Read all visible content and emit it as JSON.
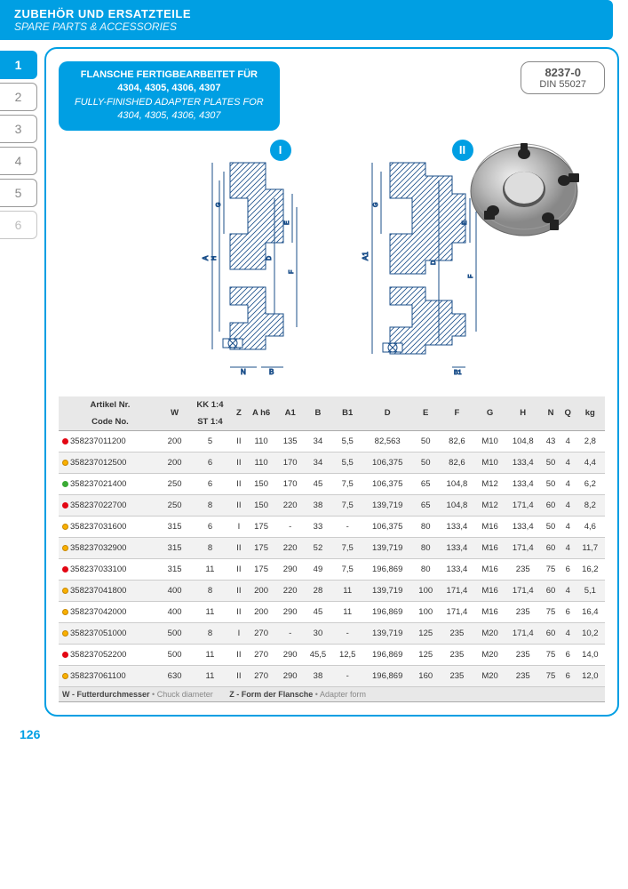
{
  "header": {
    "title_de": "ZUBEHÖR UND ERSATZTEILE",
    "title_en": "SPARE PARTS & ACCESSORIES"
  },
  "tabs": [
    {
      "label": "1",
      "state": "active"
    },
    {
      "label": "2",
      "state": "normal"
    },
    {
      "label": "3",
      "state": "normal"
    },
    {
      "label": "4",
      "state": "normal"
    },
    {
      "label": "5",
      "state": "normal"
    },
    {
      "label": "6",
      "state": "faded"
    }
  ],
  "title_box": {
    "de1": "FLANSCHE FERTIGBEARBEITET FÜR",
    "de2": "4304, 4305, 4306, 4307",
    "en1": "FULLY-FINISHED ADAPTER PLATES FOR",
    "en2": "4304, 4305, 4306, 4307"
  },
  "code_box": {
    "main": "8237-0",
    "sub": "DIN 55027"
  },
  "diagram_badges": {
    "i": "I",
    "ii": "II"
  },
  "table": {
    "headers_de": {
      "article": "Artikel Nr.",
      "kk": "KK 1:4"
    },
    "headers_en": {
      "article": "Code No.",
      "kk": "ST 1:4"
    },
    "cols": [
      "W",
      "",
      "Z",
      "A h6",
      "A1",
      "B",
      "B1",
      "D",
      "E",
      "F",
      "G",
      "H",
      "N",
      "Q",
      "kg"
    ],
    "rows": [
      {
        "dot": "red",
        "code": "358237011200",
        "cells": [
          "200",
          "5",
          "II",
          "110",
          "135",
          "34",
          "5,5",
          "82,563",
          "50",
          "82,6",
          "M10",
          "104,8",
          "43",
          "4",
          "2,8"
        ]
      },
      {
        "dot": "yellow",
        "code": "358237012500",
        "cells": [
          "200",
          "6",
          "II",
          "110",
          "170",
          "34",
          "5,5",
          "106,375",
          "50",
          "82,6",
          "M10",
          "133,4",
          "50",
          "4",
          "4,4"
        ]
      },
      {
        "dot": "green",
        "code": "358237021400",
        "cells": [
          "250",
          "6",
          "II",
          "150",
          "170",
          "45",
          "7,5",
          "106,375",
          "65",
          "104,8",
          "M12",
          "133,4",
          "50",
          "4",
          "6,2"
        ]
      },
      {
        "dot": "red",
        "code": "358237022700",
        "cells": [
          "250",
          "8",
          "II",
          "150",
          "220",
          "38",
          "7,5",
          "139,719",
          "65",
          "104,8",
          "M12",
          "171,4",
          "60",
          "4",
          "8,2"
        ]
      },
      {
        "dot": "yellow",
        "code": "358237031600",
        "cells": [
          "315",
          "6",
          "I",
          "175",
          "-",
          "33",
          "-",
          "106,375",
          "80",
          "133,4",
          "M16",
          "133,4",
          "50",
          "4",
          "4,6"
        ]
      },
      {
        "dot": "yellow",
        "code": "358237032900",
        "cells": [
          "315",
          "8",
          "II",
          "175",
          "220",
          "52",
          "7,5",
          "139,719",
          "80",
          "133,4",
          "M16",
          "171,4",
          "60",
          "4",
          "11,7"
        ]
      },
      {
        "dot": "red",
        "code": "358237033100",
        "cells": [
          "315",
          "11",
          "II",
          "175",
          "290",
          "49",
          "7,5",
          "196,869",
          "80",
          "133,4",
          "M16",
          "235",
          "75",
          "6",
          "16,2"
        ]
      },
      {
        "dot": "yellow",
        "code": "358237041800",
        "cells": [
          "400",
          "8",
          "II",
          "200",
          "220",
          "28",
          "11",
          "139,719",
          "100",
          "171,4",
          "M16",
          "171,4",
          "60",
          "4",
          "5,1"
        ]
      },
      {
        "dot": "yellow",
        "code": "358237042000",
        "cells": [
          "400",
          "11",
          "II",
          "200",
          "290",
          "45",
          "11",
          "196,869",
          "100",
          "171,4",
          "M16",
          "235",
          "75",
          "6",
          "16,4"
        ]
      },
      {
        "dot": "yellow",
        "code": "358237051000",
        "cells": [
          "500",
          "8",
          "I",
          "270",
          "-",
          "30",
          "-",
          "139,719",
          "125",
          "235",
          "M20",
          "171,4",
          "60",
          "4",
          "10,2"
        ]
      },
      {
        "dot": "red",
        "code": "358237052200",
        "cells": [
          "500",
          "11",
          "II",
          "270",
          "290",
          "45,5",
          "12,5",
          "196,869",
          "125",
          "235",
          "M20",
          "235",
          "75",
          "6",
          "14,0"
        ]
      },
      {
        "dot": "yellow",
        "code": "358237061100",
        "cells": [
          "630",
          "11",
          "II",
          "270",
          "290",
          "38",
          "-",
          "196,869",
          "160",
          "235",
          "M20",
          "235",
          "75",
          "6",
          "12,0"
        ]
      }
    ],
    "footer": {
      "w_de": "W - Futterdurchmesser",
      "w_en": "Chuck diameter",
      "z_de": "Z - Form der Flansche",
      "z_en": "Adapter form"
    }
  },
  "page_number": "126",
  "colors": {
    "accent": "#009fe3",
    "diagram_stroke": "#1b4f8a"
  }
}
